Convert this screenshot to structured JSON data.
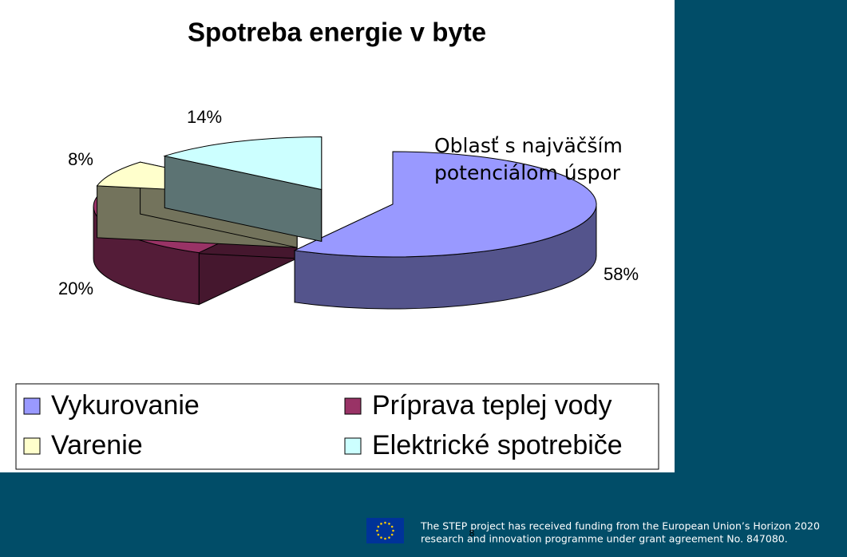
{
  "chart_data": {
    "type": "pie",
    "title": "Spotreba energie v byte",
    "categories": [
      "Vykurovanie",
      "Príprava teplej vody",
      "Varenie",
      "Elektrické spotrebiče"
    ],
    "values": [
      58,
      20,
      8,
      14
    ],
    "value_labels": [
      "58%",
      "20%",
      "8%",
      "14%"
    ],
    "colors": [
      "#9999ff",
      "#993366",
      "#ffffcc",
      "#ccffff"
    ],
    "annotation": [
      "Oblasť s najväčším",
      "potenciálom úspor"
    ],
    "legend": "bottom"
  },
  "footer": {
    "lines": [
      "The STEP project has received funding from the European Union’s Horizon 2020",
      "research and innovation programme under grant agreement No. 847080."
    ],
    "page_number": "8"
  }
}
